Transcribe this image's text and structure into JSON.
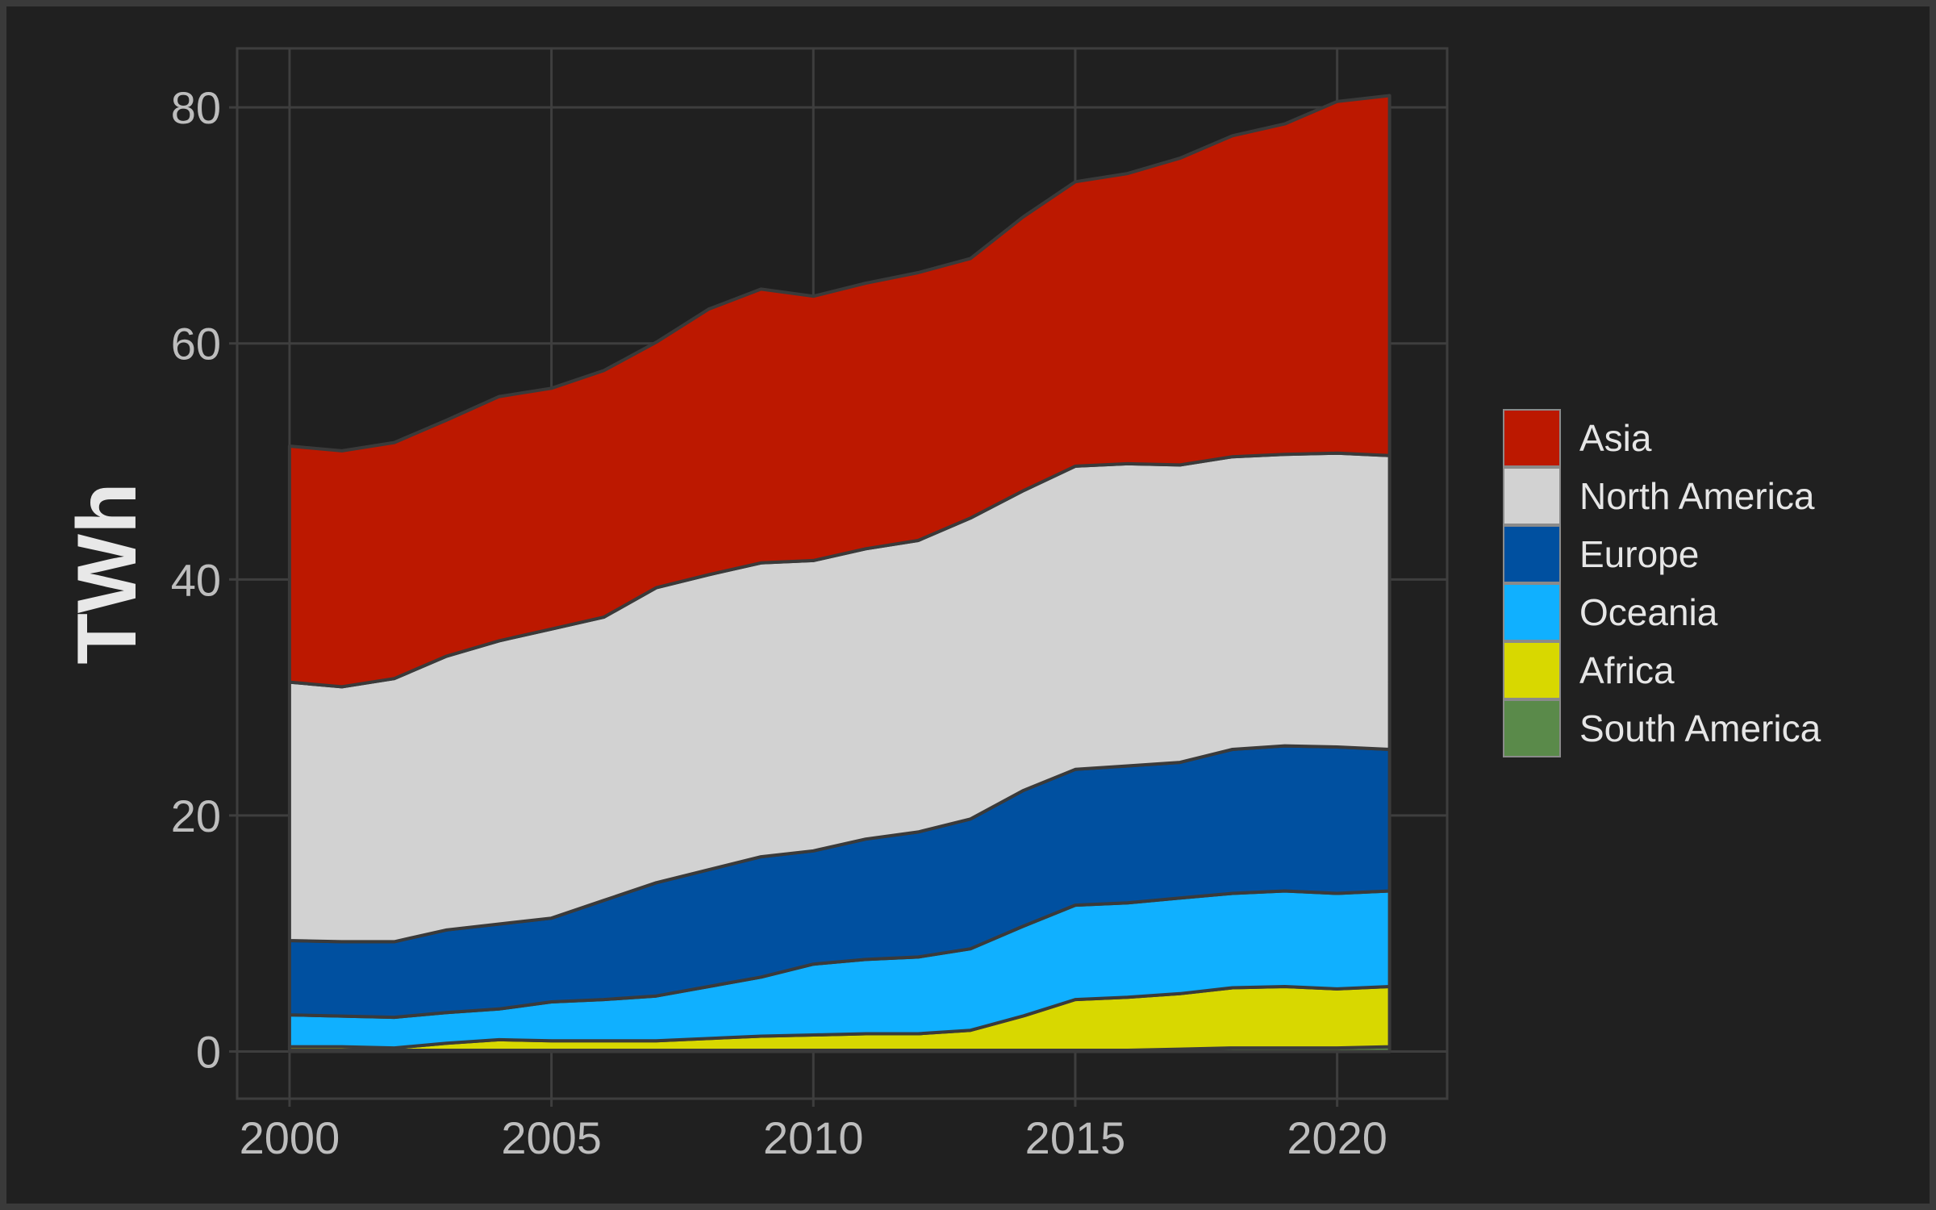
{
  "chart_data": {
    "type": "area",
    "stacked": true,
    "title": "",
    "xlabel": "",
    "ylabel": "TWh",
    "x": [
      2000,
      2001,
      2002,
      2003,
      2004,
      2005,
      2006,
      2007,
      2008,
      2009,
      2010,
      2011,
      2012,
      2013,
      2014,
      2015,
      2016,
      2017,
      2018,
      2019,
      2020,
      2021
    ],
    "xlim": [
      1999,
      2022.1
    ],
    "ylim": [
      -4,
      85
    ],
    "xticks": [
      2000,
      2005,
      2010,
      2015,
      2020
    ],
    "yticks": [
      0,
      20,
      40,
      60,
      80
    ],
    "xtick_labels": [
      "2000",
      "2005",
      "2010",
      "2015",
      "2020"
    ],
    "ytick_labels": [
      "0",
      "20",
      "40",
      "60",
      "80"
    ],
    "grid": true,
    "legend_position": "right",
    "series": [
      {
        "name": "South America",
        "color": "#5a8a4a",
        "values": [
          0.1,
          0.1,
          0.1,
          0.1,
          0.1,
          0.1,
          0.1,
          0.1,
          0.1,
          0.1,
          0.1,
          0.1,
          0.1,
          0.1,
          0.1,
          0.1,
          0.1,
          0.2,
          0.3,
          0.3,
          0.3,
          0.4
        ]
      },
      {
        "name": "Africa",
        "color": "#d8d800",
        "values": [
          0.3,
          0.3,
          0.2,
          0.6,
          0.9,
          0.8,
          0.8,
          0.8,
          1.0,
          1.2,
          1.3,
          1.4,
          1.4,
          1.7,
          2.9,
          4.3,
          4.5,
          4.7,
          5.1,
          5.2,
          5.0,
          5.1
        ]
      },
      {
        "name": "Oceania",
        "color": "#10b0ff",
        "values": [
          2.7,
          2.6,
          2.6,
          2.6,
          2.6,
          3.3,
          3.5,
          3.8,
          4.4,
          5.0,
          6.0,
          6.3,
          6.5,
          6.9,
          7.6,
          8.0,
          8.0,
          8.1,
          8.0,
          8.1,
          8.1,
          8.1
        ]
      },
      {
        "name": "Europe",
        "color": "#0050a0",
        "values": [
          6.3,
          6.3,
          6.4,
          7.0,
          7.2,
          7.1,
          8.4,
          9.6,
          9.9,
          10.2,
          9.6,
          10.2,
          10.6,
          11.0,
          11.5,
          11.5,
          11.6,
          11.5,
          12.2,
          12.3,
          12.4,
          12.0
        ]
      },
      {
        "name": "North America",
        "color": "#d2d2d2",
        "values": [
          21.9,
          21.6,
          22.3,
          23.2,
          24.0,
          24.5,
          24.0,
          25.0,
          25.0,
          24.9,
          24.6,
          24.6,
          24.7,
          25.5,
          25.4,
          25.7,
          25.6,
          25.2,
          24.8,
          24.7,
          24.9,
          24.9
        ]
      },
      {
        "name": "Asia",
        "color": "#bc1800",
        "values": [
          20.0,
          20.0,
          20.0,
          20.0,
          20.7,
          20.4,
          20.9,
          20.8,
          22.5,
          23.2,
          22.4,
          22.5,
          22.7,
          22.0,
          23.2,
          24.1,
          24.6,
          26.0,
          27.2,
          28.0,
          29.8,
          30.5
        ]
      }
    ],
    "legend_order": [
      "Asia",
      "North America",
      "Europe",
      "Oceania",
      "Africa",
      "South America"
    ]
  }
}
